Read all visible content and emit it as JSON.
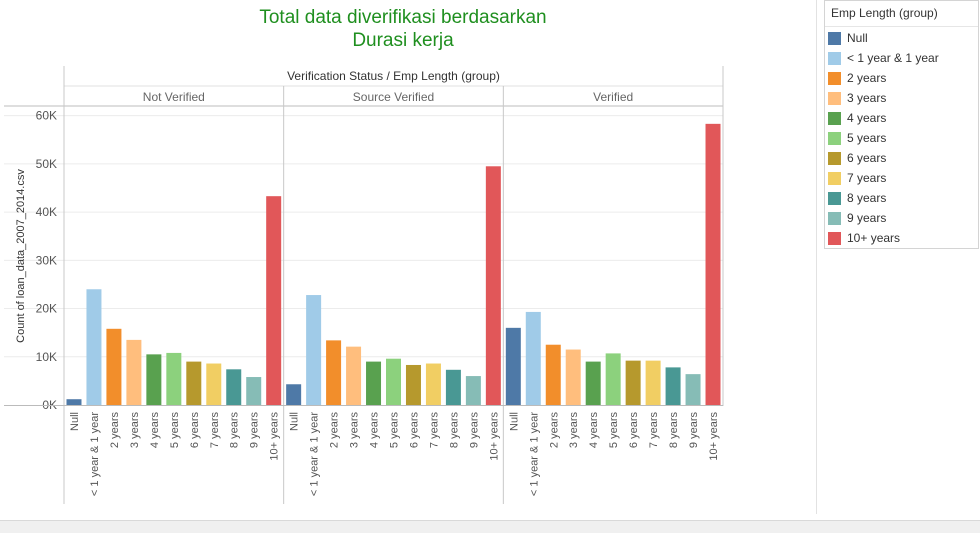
{
  "title_line1": "Total data diverifikasi berdasarkan",
  "title_line2": "Durasi kerja",
  "legend": {
    "title": "Emp Length (group)",
    "items": [
      {
        "label": "Null",
        "color": "#4e79a7"
      },
      {
        "label": "< 1 year & 1 year",
        "color": "#a0cbe8"
      },
      {
        "label": "2 years",
        "color": "#f28e2b"
      },
      {
        "label": "3 years",
        "color": "#ffbe7d"
      },
      {
        "label": "4 years",
        "color": "#59a14f"
      },
      {
        "label": "5 years",
        "color": "#8cd17d"
      },
      {
        "label": "6 years",
        "color": "#b6992d"
      },
      {
        "label": "7 years",
        "color": "#f1ce63"
      },
      {
        "label": "8 years",
        "color": "#499894"
      },
      {
        "label": "9 years",
        "color": "#86bcb6"
      },
      {
        "label": "10+ years",
        "color": "#e15759"
      }
    ]
  },
  "chart_data": {
    "type": "bar",
    "title": "Total data diverifikasi berdasarkan Durasi kerja",
    "header": "Verification Status  /  Emp Length (group)",
    "ylabel": "Count of loan_data_2007_2014.csv",
    "ylim": [
      0,
      62000
    ],
    "yticks": [
      0,
      10000,
      20000,
      30000,
      40000,
      50000,
      60000
    ],
    "ytick_labels": [
      "0K",
      "10K",
      "20K",
      "30K",
      "40K",
      "50K",
      "60K"
    ],
    "categories": [
      "Null",
      "< 1 year & 1 year",
      "2 years",
      "3 years",
      "4 years",
      "5 years",
      "6 years",
      "7 years",
      "8 years",
      "9 years",
      "10+ years"
    ],
    "panels": [
      {
        "name": "Not Verified",
        "values": [
          1200,
          24000,
          15800,
          13500,
          10500,
          10800,
          9000,
          8600,
          7400,
          5800,
          43300
        ]
      },
      {
        "name": "Source Verified",
        "values": [
          4300,
          22800,
          13400,
          12100,
          9000,
          9600,
          8300,
          8600,
          7300,
          6000,
          49500
        ]
      },
      {
        "name": "Verified",
        "values": [
          16000,
          19300,
          12500,
          11500,
          9000,
          10700,
          9200,
          9200,
          7800,
          6400,
          58300
        ]
      }
    ],
    "grid": true,
    "legend_position": "right"
  }
}
